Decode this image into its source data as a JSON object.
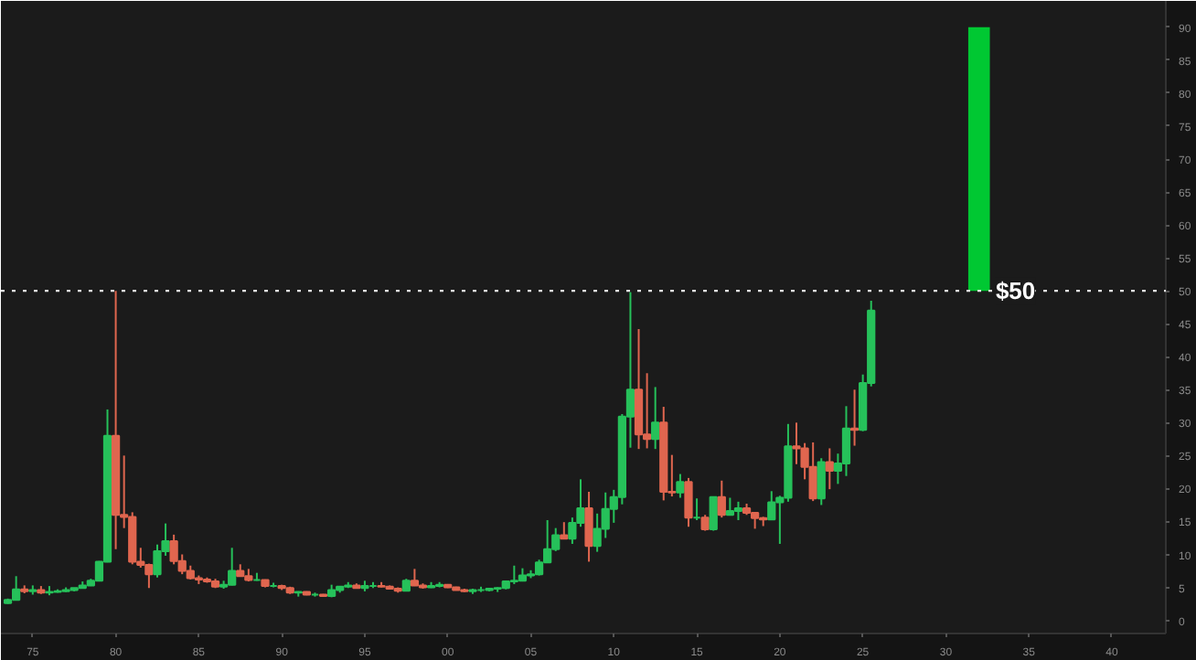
{
  "chart_data": {
    "type": "candlestick",
    "x": [
      "1973-07",
      "1974-01",
      "1974-07",
      "1975-01",
      "1975-07",
      "1976-01",
      "1976-07",
      "1977-01",
      "1977-07",
      "1978-01",
      "1978-07",
      "1979-01",
      "1979-07",
      "1980-01",
      "1980-07",
      "1981-01",
      "1981-07",
      "1982-01",
      "1982-07",
      "1983-01",
      "1983-07",
      "1984-01",
      "1984-07",
      "1985-01",
      "1985-07",
      "1986-01",
      "1986-07",
      "1987-01",
      "1987-07",
      "1988-01",
      "1988-07",
      "1989-01",
      "1989-07",
      "1990-01",
      "1990-07",
      "1991-01",
      "1991-07",
      "1992-01",
      "1992-07",
      "1993-01",
      "1993-07",
      "1994-01",
      "1994-07",
      "1995-01",
      "1995-07",
      "1996-01",
      "1996-07",
      "1997-01",
      "1997-07",
      "1998-01",
      "1998-07",
      "1999-01",
      "1999-07",
      "2000-01",
      "2000-07",
      "2001-01",
      "2001-07",
      "2002-01",
      "2002-07",
      "2003-01",
      "2003-07",
      "2004-01",
      "2004-07",
      "2005-01",
      "2005-07",
      "2006-01",
      "2006-07",
      "2007-01",
      "2007-07",
      "2008-01",
      "2008-07",
      "2009-01",
      "2009-07",
      "2010-01",
      "2010-07",
      "2011-01",
      "2011-07",
      "2012-01",
      "2012-07",
      "2013-01",
      "2013-07",
      "2014-01",
      "2014-07",
      "2015-01",
      "2015-07",
      "2016-01",
      "2016-07",
      "2017-01",
      "2017-07",
      "2018-01",
      "2018-07",
      "2019-01",
      "2019-07",
      "2020-01",
      "2020-07",
      "2021-01",
      "2021-07",
      "2022-01",
      "2022-07",
      "2023-01",
      "2023-07",
      "2024-01",
      "2024-07",
      "2025-01",
      "2025-07"
    ],
    "ohlc": [
      [
        2.6,
        3.3,
        2.5,
        3.1
      ],
      [
        3.1,
        6.7,
        3.0,
        4.7
      ],
      [
        4.7,
        5.3,
        4.1,
        4.4
      ],
      [
        4.4,
        5.3,
        3.9,
        4.6
      ],
      [
        4.6,
        5.2,
        4.0,
        4.2
      ],
      [
        4.2,
        5.2,
        3.8,
        4.3
      ],
      [
        4.3,
        4.7,
        4.2,
        4.4
      ],
      [
        4.4,
        5.0,
        4.3,
        4.6
      ],
      [
        4.6,
        4.9,
        4.4,
        4.9
      ],
      [
        4.9,
        5.9,
        4.8,
        5.3
      ],
      [
        5.3,
        6.3,
        5.2,
        6.0
      ],
      [
        6.0,
        9.0,
        5.9,
        8.9
      ],
      [
        8.9,
        32,
        8.8,
        28
      ],
      [
        28,
        50,
        10.8,
        16
      ],
      [
        16,
        25,
        14,
        15.7
      ],
      [
        15.7,
        16.4,
        8.5,
        8.9
      ],
      [
        8.9,
        11,
        8.0,
        8.4
      ],
      [
        8.4,
        8.6,
        4.9,
        7.0
      ],
      [
        7.0,
        11.5,
        6.5,
        10.5
      ],
      [
        10.5,
        14.7,
        9.8,
        12.0
      ],
      [
        12.0,
        13,
        8.5,
        9.0
      ],
      [
        9.0,
        10.0,
        7.0,
        7.5
      ],
      [
        7.5,
        8.3,
        6.2,
        6.4
      ],
      [
        6.4,
        6.8,
        5.5,
        6.2
      ],
      [
        6.2,
        6.5,
        5.7,
        5.9
      ],
      [
        5.9,
        6.3,
        4.9,
        5.1
      ],
      [
        5.1,
        6.0,
        4.8,
        5.4
      ],
      [
        5.4,
        11.0,
        5.3,
        7.5
      ],
      [
        7.5,
        8.5,
        6.6,
        6.7
      ],
      [
        6.7,
        7.8,
        5.9,
        6.1
      ],
      [
        6.1,
        7.2,
        6.0,
        6.1
      ],
      [
        6.1,
        6.2,
        5.0,
        5.2
      ],
      [
        5.2,
        5.7,
        5.0,
        5.2
      ],
      [
        5.2,
        5.4,
        4.6,
        4.9
      ],
      [
        4.9,
        5.1,
        4.0,
        4.2
      ],
      [
        4.2,
        4.4,
        3.6,
        4.3
      ],
      [
        4.3,
        4.4,
        3.8,
        3.9
      ],
      [
        3.9,
        4.2,
        3.6,
        3.9
      ],
      [
        3.9,
        4.0,
        3.6,
        3.7
      ],
      [
        3.7,
        5.4,
        3.5,
        4.6
      ],
      [
        4.6,
        5.1,
        4.2,
        5.1
      ],
      [
        5.1,
        5.8,
        4.9,
        5.3
      ],
      [
        5.3,
        5.6,
        4.9,
        4.9
      ],
      [
        4.9,
        6.0,
        4.4,
        5.2
      ],
      [
        5.2,
        5.8,
        4.9,
        5.2
      ],
      [
        5.2,
        5.8,
        5.0,
        5.1
      ],
      [
        5.1,
        5.3,
        4.7,
        4.8
      ],
      [
        4.8,
        5.0,
        4.2,
        4.5
      ],
      [
        4.5,
        6.3,
        4.4,
        6.0
      ],
      [
        6.0,
        7.8,
        5.2,
        5.3
      ],
      [
        5.3,
        5.6,
        4.8,
        5.0
      ],
      [
        5.0,
        5.8,
        4.9,
        5.2
      ],
      [
        5.2,
        5.8,
        5.0,
        5.4
      ],
      [
        5.4,
        5.5,
        4.9,
        5.0
      ],
      [
        5.0,
        5.1,
        4.6,
        4.6
      ],
      [
        4.6,
        4.8,
        4.3,
        4.4
      ],
      [
        4.4,
        4.8,
        4.0,
        4.6
      ],
      [
        4.6,
        5.1,
        4.3,
        4.6
      ],
      [
        4.6,
        4.9,
        4.4,
        4.8
      ],
      [
        4.8,
        5.0,
        4.3,
        4.9
      ],
      [
        4.9,
        5.9,
        4.7,
        5.9
      ],
      [
        5.9,
        8.3,
        5.5,
        6.0
      ],
      [
        6.0,
        7.9,
        5.9,
        6.8
      ],
      [
        6.8,
        7.6,
        6.4,
        7.0
      ],
      [
        7.0,
        9.2,
        6.8,
        8.8
      ],
      [
        8.8,
        15.2,
        8.7,
        10.8
      ],
      [
        10.8,
        14.0,
        10.5,
        12.9
      ],
      [
        12.9,
        14.9,
        12.4,
        12.4
      ],
      [
        12.4,
        15.6,
        11.6,
        14.8
      ],
      [
        14.8,
        21.4,
        14.2,
        17.0
      ],
      [
        17.0,
        19.5,
        8.9,
        11.3
      ],
      [
        11.3,
        16.2,
        10.4,
        13.9
      ],
      [
        13.9,
        19.4,
        12.5,
        16.9
      ],
      [
        16.9,
        19.8,
        14.8,
        18.7
      ],
      [
        18.7,
        31.3,
        17.6,
        30.9
      ],
      [
        30.9,
        49.8,
        26.2,
        35.0
      ],
      [
        35.0,
        44.2,
        26.0,
        28.2
      ],
      [
        28.2,
        37.5,
        26.1,
        27.5
      ],
      [
        27.5,
        35.4,
        26.0,
        30.0
      ],
      [
        30.0,
        32.4,
        18.2,
        19.5
      ],
      [
        19.5,
        25.1,
        18.8,
        19.4
      ],
      [
        19.4,
        22.2,
        18.6,
        21.0
      ],
      [
        21.0,
        21.6,
        14.2,
        15.6
      ],
      [
        15.6,
        18.5,
        15.2,
        15.6
      ],
      [
        15.6,
        16.0,
        13.6,
        13.8
      ],
      [
        13.8,
        18.8,
        13.6,
        18.7
      ],
      [
        18.7,
        21.2,
        15.6,
        16.0
      ],
      [
        16.0,
        18.6,
        16.0,
        16.6
      ],
      [
        16.6,
        18.0,
        15.2,
        17.0
      ],
      [
        17.0,
        17.7,
        16.0,
        16.3
      ],
      [
        16.3,
        16.4,
        13.9,
        15.5
      ],
      [
        15.5,
        15.7,
        14.3,
        15.3
      ],
      [
        15.3,
        19.6,
        15.2,
        17.9
      ],
      [
        17.9,
        18.9,
        11.6,
        18.6
      ],
      [
        18.6,
        29.8,
        18.0,
        26.4
      ],
      [
        26.4,
        30.0,
        23.7,
        26.1
      ],
      [
        26.1,
        26.9,
        21.4,
        23.3
      ],
      [
        23.3,
        27.0,
        18.1,
        18.5
      ],
      [
        18.5,
        24.6,
        17.5,
        24.0
      ],
      [
        24.0,
        26.1,
        19.9,
        22.7
      ],
      [
        22.7,
        25.3,
        20.7,
        23.8
      ],
      [
        23.8,
        32.5,
        21.9,
        29.1
      ],
      [
        29.1,
        35.0,
        26.5,
        28.9
      ],
      [
        28.9,
        37.3,
        28.7,
        36.0
      ],
      [
        36.0,
        48.5,
        35.5,
        47.0
      ]
    ],
    "colors": [
      "#26c15a",
      "#26c15a",
      "#e0664f",
      "#26c15a",
      "#e0664f",
      "#26c15a",
      "#26c15a",
      "#26c15a",
      "#26c15a",
      "#26c15a",
      "#26c15a",
      "#26c15a",
      "#26c15a",
      "#e0664f",
      "#e0664f",
      "#e0664f",
      "#e0664f",
      "#e0664f",
      "#26c15a",
      "#26c15a",
      "#e0664f",
      "#e0664f",
      "#e0664f",
      "#e0664f",
      "#e0664f",
      "#e0664f",
      "#26c15a",
      "#26c15a",
      "#e0664f",
      "#e0664f",
      "#26c15a",
      "#e0664f",
      "#26c15a",
      "#e0664f",
      "#e0664f",
      "#26c15a",
      "#e0664f",
      "#26c15a",
      "#e0664f",
      "#26c15a",
      "#26c15a",
      "#26c15a",
      "#e0664f",
      "#26c15a",
      "#26c15a",
      "#e0664f",
      "#e0664f",
      "#e0664f",
      "#26c15a",
      "#e0664f",
      "#e0664f",
      "#26c15a",
      "#26c15a",
      "#e0664f",
      "#e0664f",
      "#e0664f",
      "#26c15a",
      "#26c15a",
      "#26c15a",
      "#26c15a",
      "#26c15a",
      "#26c15a",
      "#26c15a",
      "#26c15a",
      "#26c15a",
      "#26c15a",
      "#26c15a",
      "#e0664f",
      "#26c15a",
      "#26c15a",
      "#e0664f",
      "#26c15a",
      "#26c15a",
      "#26c15a",
      "#26c15a",
      "#26c15a",
      "#e0664f",
      "#e0664f",
      "#26c15a",
      "#e0664f",
      "#e0664f",
      "#26c15a",
      "#e0664f",
      "#26c15a",
      "#e0664f",
      "#26c15a",
      "#e0664f",
      "#26c15a",
      "#26c15a",
      "#e0664f",
      "#e0664f",
      "#e0664f",
      "#26c15a",
      "#26c15a",
      "#26c15a",
      "#e0664f",
      "#e0664f",
      "#e0664f",
      "#26c15a",
      "#e0664f",
      "#26c15a",
      "#26c15a",
      "#e0664f",
      "#26c15a",
      "#26c15a"
    ],
    "series": [
      {
        "type": "bar",
        "x": [
          "2032-01"
        ],
        "base": [
          50
        ],
        "values": [
          40
        ],
        "color": "#00c832"
      }
    ],
    "xlim": [
      "1973-02",
      "2043-04"
    ],
    "xticks": [
      {
        "value": "1975",
        "label": "75"
      },
      {
        "value": "1980",
        "label": "80"
      },
      {
        "value": "1985",
        "label": "85"
      },
      {
        "value": "1990",
        "label": "90"
      },
      {
        "value": "1995",
        "label": "95"
      },
      {
        "value": "2000",
        "label": "00"
      },
      {
        "value": "2005",
        "label": "05"
      },
      {
        "value": "2010",
        "label": "10"
      },
      {
        "value": "2015",
        "label": "15"
      },
      {
        "value": "2020",
        "label": "20"
      },
      {
        "value": "2025",
        "label": "25"
      },
      {
        "value": "2030",
        "label": "30"
      },
      {
        "value": "2035",
        "label": "35"
      },
      {
        "value": "2040",
        "label": "40"
      }
    ],
    "ylim": [
      -2,
      94
    ],
    "yticks": [
      0,
      5,
      10,
      15,
      20,
      25,
      30,
      35,
      40,
      45,
      50,
      55,
      60,
      65,
      70,
      75,
      80,
      85,
      90
    ],
    "ref_lines": [
      {
        "axis": "y",
        "value": 50,
        "label": "$50",
        "color": "#e8e8e8",
        "line_style": "dotted"
      }
    ],
    "grid": false
  }
}
